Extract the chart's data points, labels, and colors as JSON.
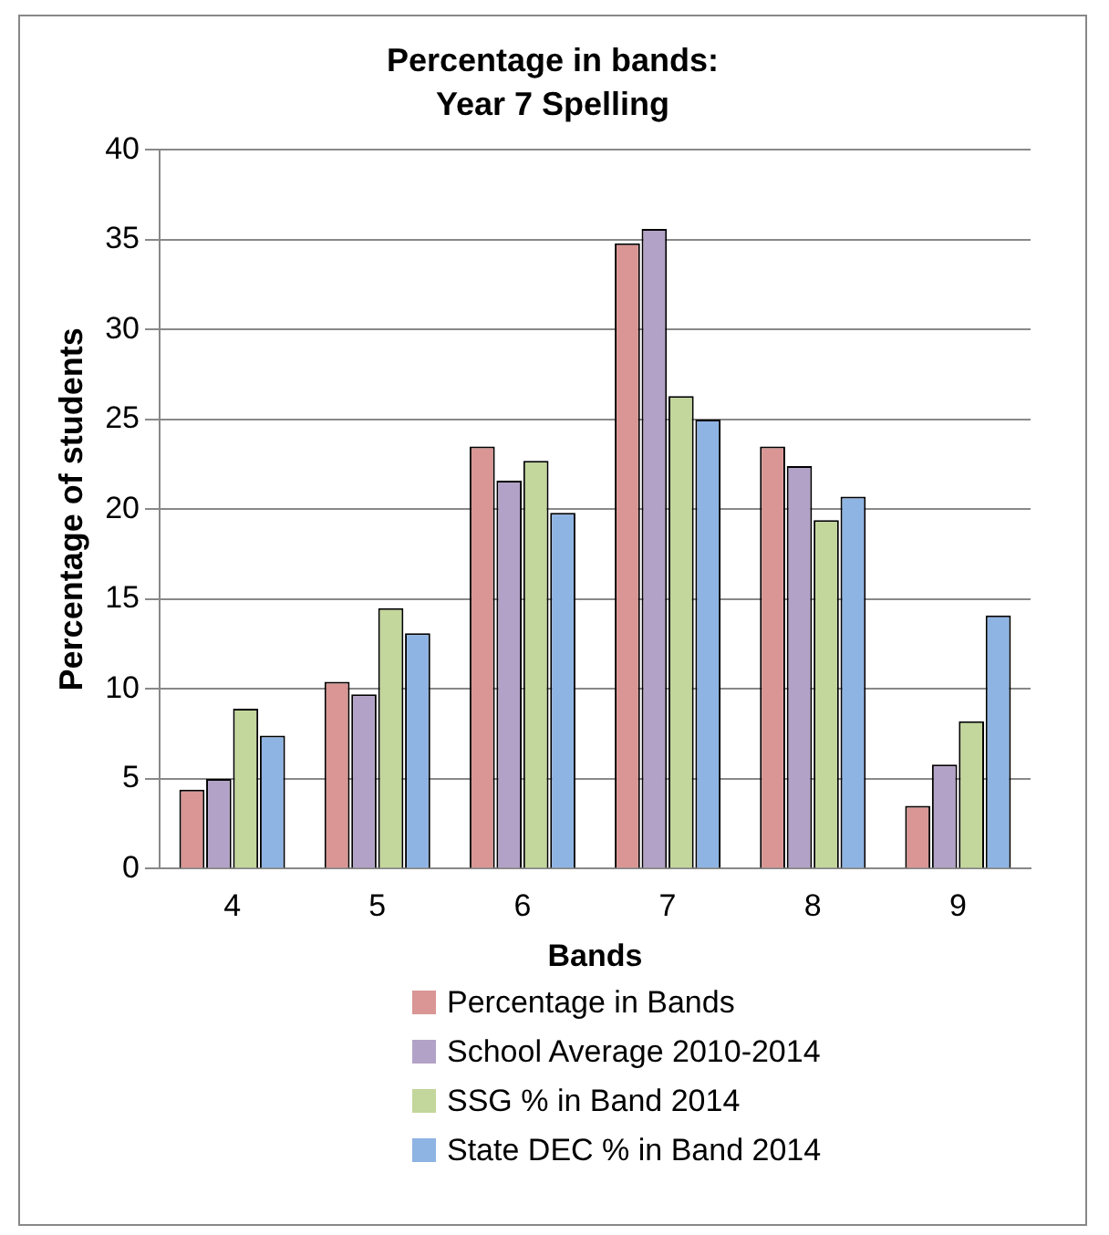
{
  "chart_data": {
    "type": "bar",
    "title": "Percentage in bands:\nYear 7 Spelling",
    "xlabel": "Bands",
    "ylabel": "Percentage of students",
    "categories": [
      "4",
      "5",
      "6",
      "7",
      "8",
      "9"
    ],
    "series": [
      {
        "name": "Percentage in Bands",
        "color": "#d99694",
        "values": [
          4.4,
          10.4,
          23.5,
          34.8,
          23.5,
          3.5
        ]
      },
      {
        "name": "School Average 2010-2014",
        "color": "#b3a2c7",
        "values": [
          5.0,
          9.7,
          21.6,
          35.6,
          22.4,
          5.8
        ]
      },
      {
        "name": "SSG % in Band 2014",
        "color": "#c3d69b",
        "values": [
          8.9,
          14.5,
          22.7,
          26.3,
          19.4,
          8.2
        ]
      },
      {
        "name": "State DEC % in Band 2014",
        "color": "#8eb4e3",
        "values": [
          7.4,
          13.1,
          19.8,
          25.0,
          20.7,
          14.1
        ]
      }
    ],
    "ylim": [
      0,
      40
    ],
    "yticks": [
      0,
      5,
      10,
      15,
      20,
      25,
      30,
      35,
      40
    ],
    "grid": "y",
    "legend": "bottom"
  }
}
